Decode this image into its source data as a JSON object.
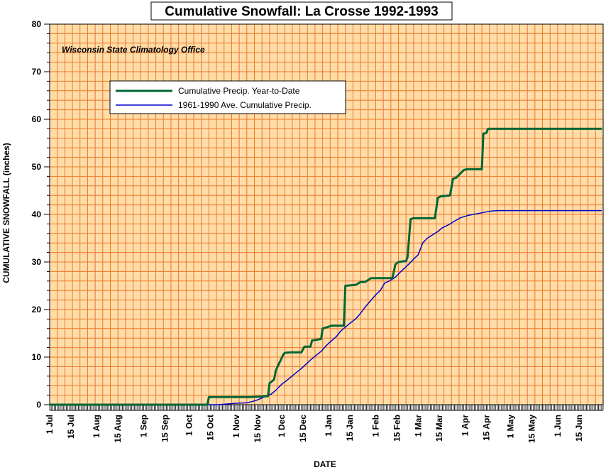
{
  "chart_data": {
    "type": "line",
    "title": "Cumulative Snowfall: La Crosse 1992-1993",
    "annotation": "Wisconsin State Climatology Office",
    "xlabel": "DATE",
    "ylabel": "CUMULATIVE SNOWFALL (inches)",
    "ylim": [
      0,
      80
    ],
    "y_ticks": [
      "0",
      "10",
      "20",
      "30",
      "40",
      "50",
      "60",
      "70",
      "80"
    ],
    "x_ticks": [
      "1 Jul",
      "15 Jul",
      "1 Aug",
      "15 Aug",
      "1 Sep",
      "15 Sep",
      "1 Oct",
      "15 Oct",
      "1 Nov",
      "15 Nov",
      "1 Dec",
      "15 Dec",
      "1 Jan",
      "15 Jan",
      "1 Feb",
      "15 Feb",
      "1 Mar",
      "15 Mar",
      "1 Apr",
      "15 Apr",
      "1 May",
      "15 May",
      "1 Jun",
      "15 Jun"
    ],
    "grid": true,
    "legend_position": "top-left",
    "colors": {
      "plot_background": "#ffdca8",
      "grid": "#f07828",
      "series1": "#006633",
      "series2": "#0000cc"
    },
    "series": [
      {
        "name": "Cumulative Precip. Year-to-Date",
        "x": [
          "1 Jul",
          "13 Oct",
          "14 Oct",
          "10 Nov",
          "22 Nov",
          "23 Nov",
          "26 Nov",
          "27 Nov",
          "28 Nov",
          "1 Dec",
          "2 Dec",
          "3 Dec",
          "7 Dec",
          "14 Dec",
          "16 Dec",
          "20 Dec",
          "21 Dec",
          "27 Dec",
          "28 Dec",
          "29 Dec",
          "2 Jan",
          "3 Jan",
          "11 Jan",
          "12 Jan",
          "19 Jan",
          "22 Jan",
          "25 Jan",
          "29 Jan",
          "31 Jan",
          "12 Feb",
          "14 Feb",
          "16 Feb",
          "21 Feb",
          "22 Feb",
          "24 Feb",
          "26 Feb",
          "12 Mar",
          "14 Mar",
          "16 Mar",
          "22 Mar",
          "24 Mar",
          "26 Mar",
          "31 Mar",
          "2 Apr",
          "12 Apr",
          "13 Apr",
          "15 Apr",
          "16 Apr",
          "30 Jun"
        ],
        "y": [
          0,
          0,
          1.6,
          1.6,
          1.8,
          4.5,
          5.3,
          7,
          7.8,
          9.8,
          10.5,
          10.9,
          11,
          11,
          12.2,
          12.2,
          13.5,
          13.8,
          16,
          16.1,
          16.5,
          16.6,
          16.6,
          25,
          25.2,
          25.8,
          25.8,
          26.6,
          26.6,
          26.6,
          29.5,
          30,
          30.2,
          31,
          39,
          39.2,
          39.2,
          43.5,
          43.8,
          44,
          47.5,
          47.7,
          49.3,
          49.5,
          49.5,
          57,
          57.1,
          58,
          58
        ]
      },
      {
        "name": "1961-1990 Ave. Cumulative Precip.",
        "x": [
          "1 Jul",
          "20 Oct",
          "1 Nov",
          "8 Nov",
          "12 Nov",
          "15 Nov",
          "18 Nov",
          "21 Nov",
          "24 Nov",
          "27 Nov",
          "1 Dec",
          "4 Dec",
          "7 Dec",
          "10 Dec",
          "14 Dec",
          "17 Dec",
          "20 Dec",
          "23 Dec",
          "27 Dec",
          "30 Dec",
          "2 Jan",
          "6 Jan",
          "9 Jan",
          "12 Jan",
          "15 Jan",
          "19 Jan",
          "22 Jan",
          "25 Jan",
          "29 Jan",
          "1 Feb",
          "4 Feb",
          "7 Feb",
          "10 Feb",
          "14 Feb",
          "17 Feb",
          "20 Feb",
          "23 Feb",
          "26 Feb",
          "1 Mar",
          "4 Mar",
          "7 Mar",
          "11 Mar",
          "14 Mar",
          "17 Mar",
          "21 Mar",
          "25 Mar",
          "29 Mar",
          "3 Apr",
          "8 Apr",
          "13 Apr",
          "18 Apr",
          "23 Apr",
          "30 Jun"
        ],
        "y": [
          0,
          0,
          0.3,
          0.4,
          0.7,
          1,
          1.4,
          1.9,
          2.2,
          3,
          4.3,
          5,
          5.8,
          6.6,
          7.6,
          8.5,
          9.4,
          10.2,
          11.2,
          12.3,
          13.2,
          14.3,
          15.5,
          16.3,
          17.1,
          18.1,
          19.2,
          20.5,
          22,
          23.1,
          24,
          25.6,
          26,
          26.8,
          27.8,
          28.7,
          29.6,
          30.6,
          31.5,
          34,
          35,
          35.8,
          36.4,
          37.2,
          37.8,
          38.6,
          39.3,
          39.8,
          40.1,
          40.4,
          40.7,
          40.8,
          40.8
        ]
      }
    ]
  }
}
